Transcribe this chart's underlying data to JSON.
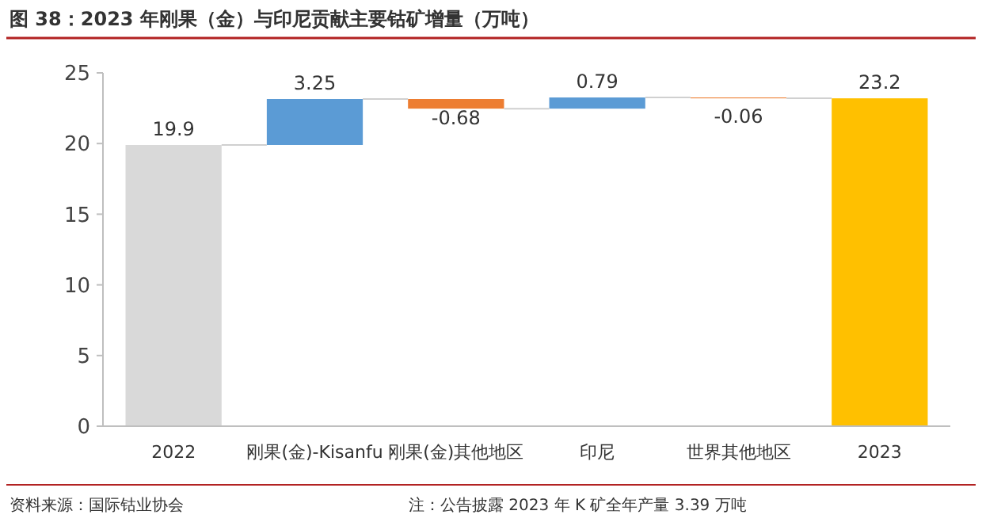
{
  "chart_data": {
    "type": "bar",
    "title": "图 38：2023 年刚果（金）与印尼贡献主要钴矿增量（万吨）",
    "categories": [
      "2022",
      "刚果(金)-Kisanfu",
      "刚果(金)其他地区",
      "印尼",
      "世界其他地区",
      "2023"
    ],
    "values": [
      19.9,
      3.25,
      -0.68,
      0.79,
      -0.06,
      23.2
    ],
    "base": [
      0,
      19.9,
      23.15,
      22.47,
      23.26,
      0
    ],
    "colors": [
      "#d9d9d9",
      "#5b9bd5",
      "#ed7d31",
      "#5b9bd5",
      "#ed7d31",
      "#ffc000"
    ],
    "ylim": [
      0,
      25
    ],
    "yticks": [
      0,
      5,
      10,
      15,
      20,
      25
    ],
    "grid": false,
    "data_labels": true,
    "annotations": [
      "资料来源：国际钴业协会",
      "注：公告披露 2023 年 K 矿全年产量 3.39 万吨"
    ]
  }
}
